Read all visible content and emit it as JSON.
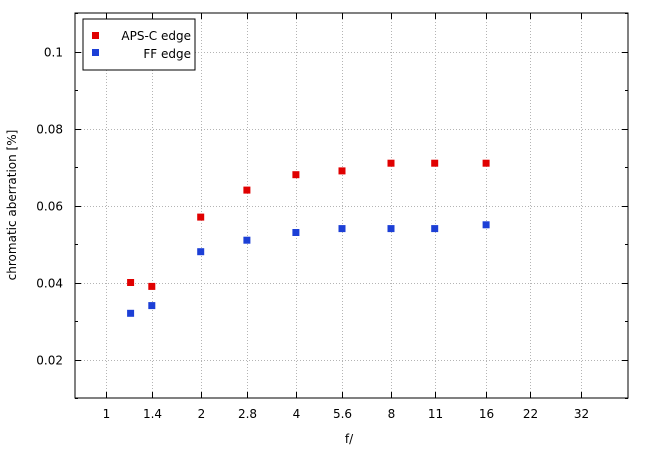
{
  "chart_data": {
    "type": "scatter",
    "xlabel": "f/",
    "ylabel": "chromatic  aberration [%]",
    "x_scale": "log",
    "x_ticks": [
      "1",
      "1.4",
      "2",
      "2.8",
      "4",
      "5.6",
      "8",
      "11",
      "16",
      "22",
      "32"
    ],
    "xlim": [
      0.8,
      45
    ],
    "ylim": [
      0.01,
      0.11
    ],
    "y_ticks": [
      "0.02",
      "0.04",
      "0.06",
      "0.08",
      "0.1"
    ],
    "grid": true,
    "legend_position": "top-left",
    "series": [
      {
        "name": "APS-C edge",
        "color": "#e00000",
        "marker": "square",
        "x": [
          1.2,
          1.4,
          2,
          2.8,
          4,
          5.6,
          8,
          11,
          16
        ],
        "y": [
          0.04,
          0.039,
          0.057,
          0.064,
          0.068,
          0.069,
          0.071,
          0.071,
          0.071
        ]
      },
      {
        "name": "FF edge",
        "color": "#1c3fd6",
        "marker": "square",
        "x": [
          1.2,
          1.4,
          2,
          2.8,
          4,
          5.6,
          8,
          11,
          16
        ],
        "y": [
          0.032,
          0.034,
          0.048,
          0.051,
          0.053,
          0.054,
          0.054,
          0.054,
          0.055
        ]
      }
    ]
  }
}
